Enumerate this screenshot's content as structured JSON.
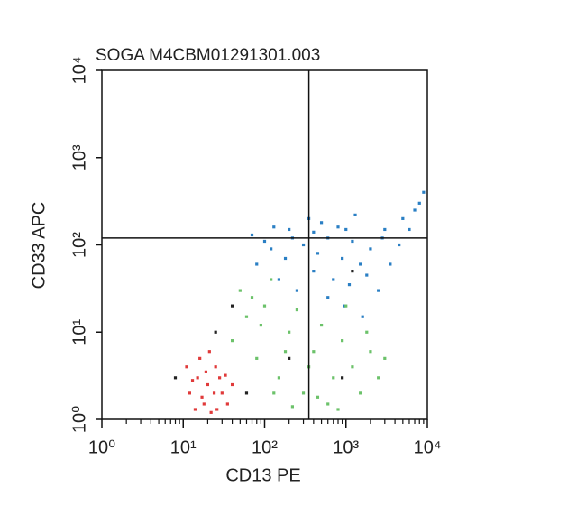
{
  "chart_data": {
    "type": "scatter",
    "title": "SOGA M4CBM01291301.003",
    "xlabel": "CD13 PE",
    "ylabel": "CD33 APC",
    "xscale": "log",
    "yscale": "log",
    "xlim": [
      1,
      10000
    ],
    "ylim": [
      1,
      10000
    ],
    "xticks": [
      {
        "value": 1,
        "label": "10⁰"
      },
      {
        "value": 10,
        "label": "10¹"
      },
      {
        "value": 100,
        "label": "10²"
      },
      {
        "value": 1000,
        "label": "10³"
      },
      {
        "value": 10000,
        "label": "10⁴"
      }
    ],
    "yticks": [
      {
        "value": 1,
        "label": "10⁰"
      },
      {
        "value": 10,
        "label": "10¹"
      },
      {
        "value": 100,
        "label": "10²"
      },
      {
        "value": 1000,
        "label": "10³"
      },
      {
        "value": 10000,
        "label": "10⁴"
      }
    ],
    "quadrant": {
      "x": 350,
      "y": 120
    },
    "series": [
      {
        "color": "#2a7fc4",
        "x": [
          80,
          120,
          200,
          300,
          450,
          600,
          900,
          1200,
          1500,
          2000,
          3000,
          5000,
          7000,
          8000,
          9000,
          150,
          250,
          400,
          700,
          1100,
          1800,
          2500,
          350,
          500,
          800,
          1300,
          100,
          180,
          600,
          950,
          1600,
          3500,
          4500,
          6000,
          220,
          130,
          70,
          400,
          1000,
          2800
        ],
        "values": [
          60,
          90,
          150,
          100,
          80,
          120,
          70,
          110,
          60,
          90,
          150,
          200,
          250,
          300,
          400,
          40,
          30,
          50,
          40,
          35,
          45,
          30,
          200,
          180,
          160,
          220,
          110,
          70,
          25,
          20,
          15,
          60,
          100,
          150,
          120,
          160,
          130,
          140,
          150,
          120
        ]
      },
      {
        "color": "#6cc26a",
        "x": [
          40,
          60,
          80,
          100,
          150,
          200,
          300,
          400,
          500,
          700,
          900,
          1200,
          1500,
          2000,
          2500,
          50,
          120,
          70,
          250,
          600,
          800,
          1000,
          350,
          450,
          180,
          1800,
          3000,
          90,
          130,
          220
        ],
        "values": [
          8,
          15,
          5,
          20,
          3,
          10,
          2,
          6,
          12,
          3,
          8,
          4,
          2,
          6,
          3,
          30,
          40,
          25,
          18,
          1.5,
          1.3,
          20,
          4,
          1.8,
          6,
          10,
          5,
          12,
          2,
          1.4
        ]
      },
      {
        "color": "#e03a3a",
        "x": [
          12,
          15,
          18,
          20,
          25,
          22,
          30,
          16,
          14,
          28,
          35,
          19,
          24,
          11,
          40,
          17,
          26,
          21,
          13,
          33
        ],
        "values": [
          2,
          3,
          1.5,
          2.5,
          4,
          1.2,
          2,
          5,
          1.3,
          3,
          1.5,
          3.5,
          2,
          4,
          2.5,
          1.8,
          1.3,
          6,
          2.8,
          3.2
        ]
      },
      {
        "color": "#222222",
        "x": [
          25,
          40,
          200,
          900,
          1200,
          8,
          60
        ],
        "values": [
          10,
          20,
          5,
          3,
          50,
          3,
          2
        ]
      }
    ]
  }
}
